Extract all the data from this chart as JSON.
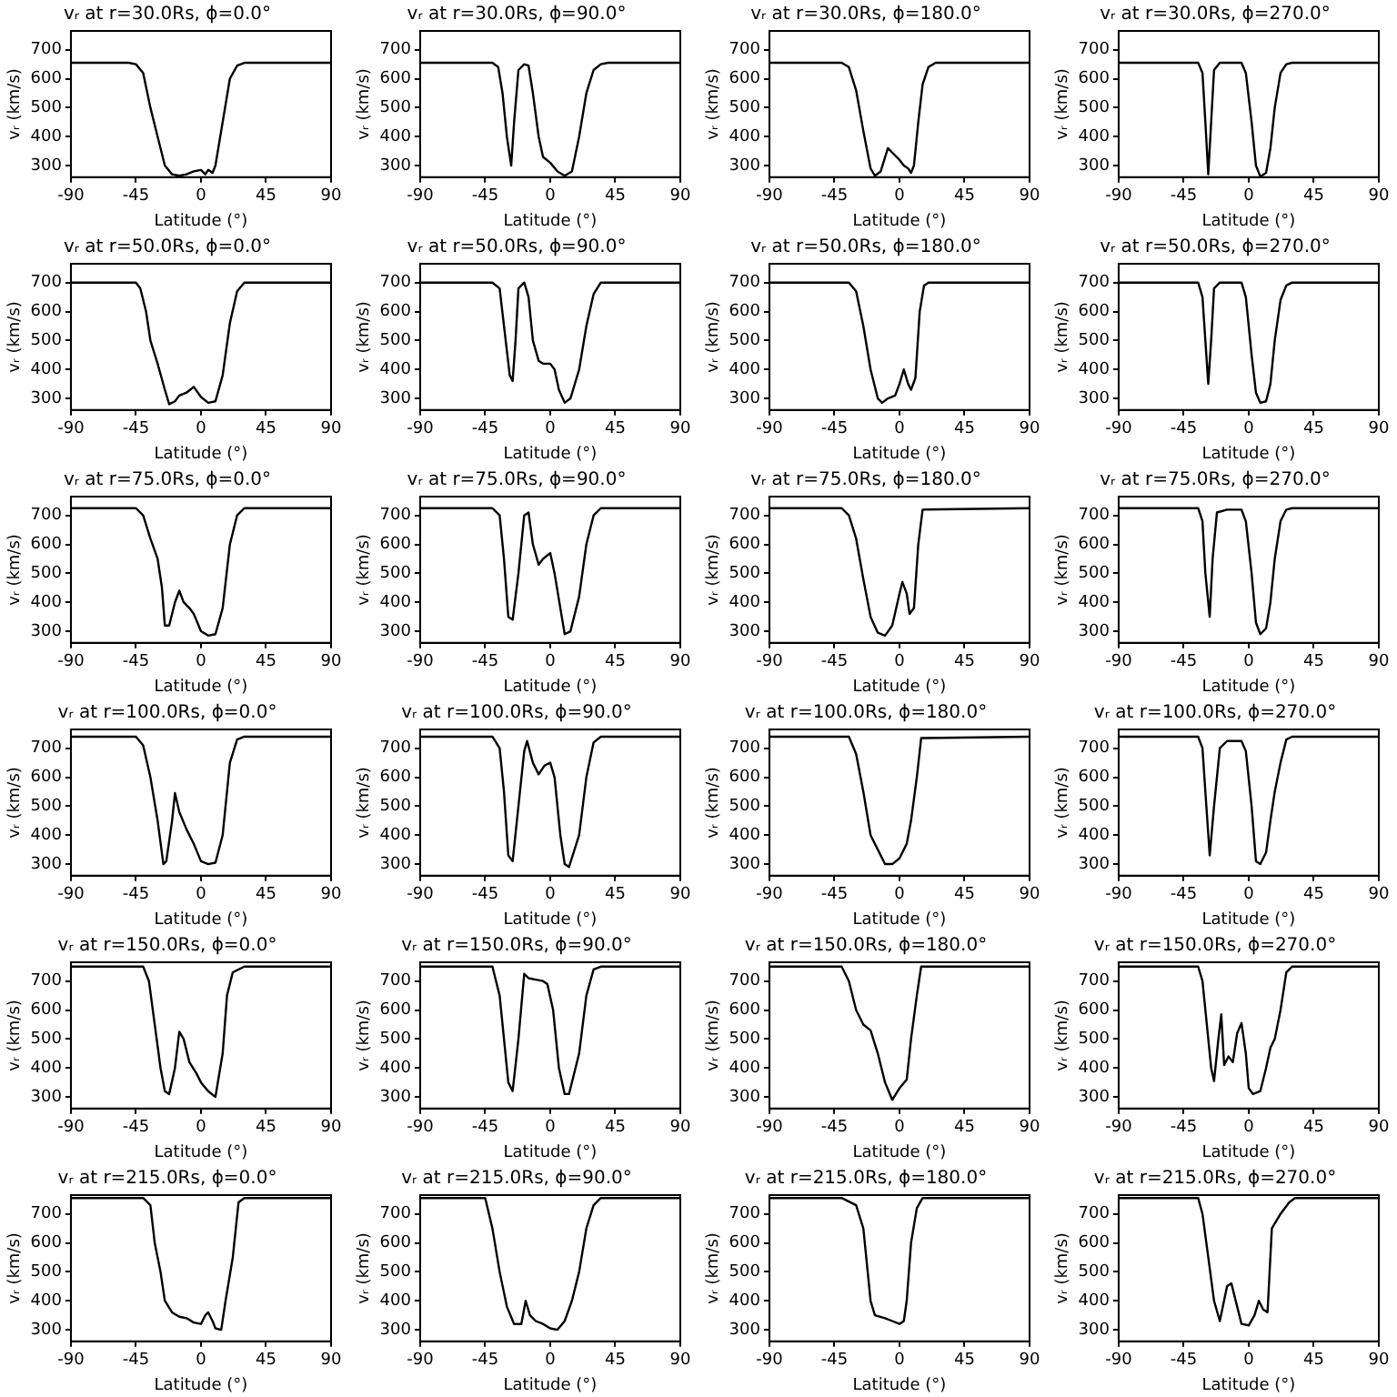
{
  "chart_data": [
    {
      "type": "line",
      "title": "vᵣ at r=30.0Rs, ϕ=0.0°",
      "xlabel": "Latitude (°)",
      "ylabel": "vᵣ (km/s)",
      "xlim": [
        -90,
        90
      ],
      "xticks": [
        -90,
        -45,
        0,
        45,
        90
      ],
      "ylim": [
        260,
        765
      ],
      "yticks": [
        300,
        400,
        500,
        600,
        700
      ],
      "color": "#000000",
      "marker": "none",
      "x": [
        -90,
        -50,
        -45,
        -40,
        -35,
        -30,
        -25,
        -20,
        -15,
        -10,
        -5,
        0,
        3,
        5,
        8,
        10,
        15,
        20,
        25,
        30,
        90
      ],
      "values": [
        655,
        655,
        650,
        620,
        500,
        400,
        300,
        270,
        265,
        270,
        280,
        285,
        270,
        285,
        275,
        300,
        450,
        600,
        645,
        655,
        655
      ]
    },
    {
      "type": "line",
      "title": "vᵣ at r=30.0Rs, ϕ=90.0°",
      "xlabel": "Latitude (°)",
      "ylabel": "vᵣ (km/s)",
      "xlim": [
        -90,
        90
      ],
      "xticks": [
        -90,
        -45,
        0,
        45,
        90
      ],
      "ylim": [
        260,
        765
      ],
      "yticks": [
        300,
        400,
        500,
        600,
        700
      ],
      "color": "#000000",
      "marker": "none",
      "x": [
        -90,
        -40,
        -36,
        -33,
        -30,
        -27,
        -25,
        -22,
        -18,
        -15,
        -12,
        -8,
        -5,
        0,
        5,
        10,
        15,
        20,
        25,
        30,
        35,
        40,
        90
      ],
      "values": [
        655,
        655,
        640,
        550,
        400,
        300,
        450,
        630,
        650,
        645,
        550,
        400,
        330,
        310,
        280,
        265,
        280,
        400,
        550,
        630,
        650,
        655,
        655
      ]
    },
    {
      "type": "line",
      "title": "vᵣ at r=30.0Rs, ϕ=180.0°",
      "xlabel": "Latitude (°)",
      "ylabel": "vᵣ (km/s)",
      "xlim": [
        -90,
        90
      ],
      "xticks": [
        -90,
        -45,
        0,
        45,
        90
      ],
      "ylim": [
        260,
        765
      ],
      "yticks": [
        300,
        400,
        500,
        600,
        700
      ],
      "color": "#000000",
      "marker": "none",
      "x": [
        -90,
        -40,
        -35,
        -30,
        -25,
        -20,
        -17,
        -13,
        -8,
        -5,
        0,
        3,
        6,
        8,
        10,
        13,
        16,
        20,
        25,
        90
      ],
      "values": [
        655,
        655,
        640,
        560,
        420,
        290,
        265,
        280,
        360,
        345,
        320,
        300,
        290,
        275,
        300,
        450,
        580,
        640,
        655,
        655
      ]
    },
    {
      "type": "line",
      "title": "vᵣ at r=30.0Rs, ϕ=270.0°",
      "xlabel": "Latitude (°)",
      "ylabel": "vᵣ (km/s)",
      "xlim": [
        -90,
        90
      ],
      "xticks": [
        -90,
        -45,
        0,
        45,
        90
      ],
      "ylim": [
        260,
        765
      ],
      "yticks": [
        300,
        400,
        500,
        600,
        700
      ],
      "color": "#000000",
      "marker": "none",
      "x": [
        -90,
        -35,
        -32,
        -30,
        -28,
        -26,
        -24,
        -20,
        -5,
        -2,
        2,
        5,
        8,
        12,
        15,
        18,
        22,
        26,
        30,
        90
      ],
      "values": [
        655,
        655,
        620,
        450,
        270,
        450,
        630,
        655,
        655,
        620,
        450,
        300,
        262,
        275,
        360,
        500,
        620,
        650,
        655,
        655
      ]
    },
    {
      "type": "line",
      "title": "vᵣ at r=50.0Rs, ϕ=0.0°",
      "xlabel": "Latitude (°)",
      "ylabel": "vᵣ (km/s)",
      "xlim": [
        -90,
        90
      ],
      "xticks": [
        -90,
        -45,
        0,
        45,
        90
      ],
      "ylim": [
        260,
        765
      ],
      "yticks": [
        300,
        400,
        500,
        600,
        700
      ],
      "color": "#000000",
      "marker": "none",
      "x": [
        -90,
        -45,
        -42,
        -38,
        -35,
        -30,
        -25,
        -22,
        -18,
        -15,
        -10,
        -5,
        0,
        5,
        10,
        15,
        20,
        25,
        30,
        90
      ],
      "values": [
        700,
        700,
        680,
        600,
        500,
        420,
        330,
        280,
        290,
        310,
        320,
        340,
        305,
        285,
        290,
        380,
        560,
        670,
        700,
        700
      ]
    },
    {
      "type": "line",
      "title": "vᵣ at r=50.0Rs, ϕ=90.0°",
      "xlabel": "Latitude (°)",
      "ylabel": "vᵣ (km/s)",
      "xlim": [
        -90,
        90
      ],
      "xticks": [
        -90,
        -45,
        0,
        45,
        90
      ],
      "ylim": [
        260,
        765
      ],
      "yticks": [
        300,
        400,
        500,
        600,
        700
      ],
      "color": "#000000",
      "marker": "none",
      "x": [
        -90,
        -40,
        -35,
        -32,
        -28,
        -26,
        -24,
        -22,
        -18,
        -15,
        -12,
        -8,
        -5,
        0,
        3,
        6,
        10,
        14,
        20,
        25,
        30,
        35,
        90
      ],
      "values": [
        700,
        700,
        680,
        550,
        380,
        360,
        500,
        680,
        700,
        650,
        500,
        430,
        420,
        420,
        400,
        330,
        285,
        300,
        400,
        550,
        660,
        700,
        700
      ]
    },
    {
      "type": "line",
      "title": "vᵣ at r=50.0Rs, ϕ=180.0°",
      "xlabel": "Latitude (°)",
      "ylabel": "vᵣ (km/s)",
      "xlim": [
        -90,
        90
      ],
      "xticks": [
        -90,
        -45,
        0,
        45,
        90
      ],
      "ylim": [
        260,
        765
      ],
      "yticks": [
        300,
        400,
        500,
        600,
        700
      ],
      "color": "#000000",
      "marker": "none",
      "x": [
        -90,
        -35,
        -30,
        -25,
        -20,
        -15,
        -12,
        -8,
        -3,
        0,
        3,
        6,
        8,
        11,
        14,
        17,
        20,
        90
      ],
      "values": [
        700,
        700,
        670,
        550,
        400,
        300,
        285,
        300,
        310,
        350,
        400,
        350,
        330,
        370,
        600,
        690,
        700,
        700
      ]
    },
    {
      "type": "line",
      "title": "vᵣ at r=50.0Rs, ϕ=270.0°",
      "xlabel": "Latitude (°)",
      "ylabel": "vᵣ (km/s)",
      "xlim": [
        -90,
        90
      ],
      "xticks": [
        -90,
        -45,
        0,
        45,
        90
      ],
      "ylim": [
        260,
        765
      ],
      "yticks": [
        300,
        400,
        500,
        600,
        700
      ],
      "color": "#000000",
      "marker": "none",
      "x": [
        -90,
        -35,
        -32,
        -30,
        -28,
        -26,
        -24,
        -20,
        -5,
        -2,
        2,
        5,
        8,
        12,
        15,
        18,
        22,
        26,
        30,
        90
      ],
      "values": [
        700,
        700,
        650,
        500,
        350,
        500,
        680,
        700,
        700,
        650,
        450,
        320,
        285,
        290,
        350,
        500,
        640,
        690,
        700,
        700
      ]
    },
    {
      "type": "line",
      "title": "vᵣ at r=75.0Rs, ϕ=0.0°",
      "xlabel": "Latitude (°)",
      "ylabel": "vᵣ (km/s)",
      "xlim": [
        -90,
        90
      ],
      "xticks": [
        -90,
        -45,
        0,
        45,
        90
      ],
      "ylim": [
        260,
        765
      ],
      "yticks": [
        300,
        400,
        500,
        600,
        700
      ],
      "color": "#000000",
      "marker": "none",
      "x": [
        -90,
        -45,
        -40,
        -35,
        -30,
        -27,
        -25,
        -22,
        -18,
        -15,
        -12,
        -8,
        -5,
        0,
        5,
        10,
        15,
        20,
        25,
        30,
        90
      ],
      "values": [
        725,
        725,
        700,
        620,
        550,
        450,
        320,
        320,
        400,
        440,
        400,
        380,
        360,
        300,
        285,
        290,
        380,
        600,
        700,
        725,
        725
      ]
    },
    {
      "type": "line",
      "title": "vᵣ at r=75.0Rs, ϕ=90.0°",
      "xlabel": "Latitude (°)",
      "ylabel": "vᵣ (km/s)",
      "xlim": [
        -90,
        90
      ],
      "xticks": [
        -90,
        -45,
        0,
        45,
        90
      ],
      "ylim": [
        260,
        765
      ],
      "yticks": [
        300,
        400,
        500,
        600,
        700
      ],
      "color": "#000000",
      "marker": "none",
      "x": [
        -90,
        -40,
        -35,
        -32,
        -29,
        -26,
        -22,
        -18,
        -15,
        -12,
        -8,
        -5,
        0,
        3,
        7,
        10,
        14,
        20,
        25,
        30,
        35,
        90
      ],
      "values": [
        725,
        725,
        700,
        550,
        350,
        340,
        500,
        700,
        710,
        600,
        530,
        550,
        570,
        500,
        380,
        290,
        300,
        420,
        600,
        700,
        725,
        725
      ]
    },
    {
      "type": "line",
      "title": "vᵣ at r=75.0Rs, ϕ=180.0°",
      "xlabel": "Latitude (°)",
      "ylabel": "vᵣ (km/s)",
      "xlim": [
        -90,
        90
      ],
      "xticks": [
        -90,
        -45,
        0,
        45,
        90
      ],
      "ylim": [
        260,
        765
      ],
      "yticks": [
        300,
        400,
        500,
        600,
        700
      ],
      "color": "#000000",
      "marker": "none",
      "x": [
        -90,
        -40,
        -35,
        -30,
        -25,
        -20,
        -15,
        -10,
        -5,
        0,
        2,
        5,
        7,
        10,
        13,
        16,
        90
      ],
      "values": [
        725,
        725,
        700,
        620,
        480,
        350,
        295,
        285,
        320,
        430,
        470,
        430,
        360,
        380,
        600,
        720,
        725
      ]
    },
    {
      "type": "line",
      "title": "vᵣ at r=75.0Rs, ϕ=270.0°",
      "xlabel": "Latitude (°)",
      "ylabel": "vᵣ (km/s)",
      "xlim": [
        -90,
        90
      ],
      "xticks": [
        -90,
        -45,
        0,
        45,
        90
      ],
      "ylim": [
        260,
        765
      ],
      "yticks": [
        300,
        400,
        500,
        600,
        700
      ],
      "color": "#000000",
      "marker": "none",
      "x": [
        -90,
        -35,
        -32,
        -30,
        -27,
        -25,
        -22,
        -15,
        -5,
        -2,
        2,
        5,
        8,
        12,
        15,
        18,
        22,
        26,
        30,
        90
      ],
      "values": [
        725,
        725,
        680,
        500,
        350,
        550,
        710,
        720,
        720,
        680,
        500,
        330,
        290,
        310,
        400,
        550,
        680,
        720,
        725,
        725
      ]
    },
    {
      "type": "line",
      "title": "vᵣ at r=100.0Rs, ϕ=0.0°",
      "xlabel": "Latitude (°)",
      "ylabel": "vᵣ (km/s)",
      "xlim": [
        -90,
        90
      ],
      "xticks": [
        -90,
        -45,
        0,
        45,
        90
      ],
      "ylim": [
        260,
        765
      ],
      "yticks": [
        300,
        400,
        500,
        600,
        700
      ],
      "color": "#000000",
      "marker": "none",
      "x": [
        -90,
        -45,
        -40,
        -35,
        -30,
        -26,
        -24,
        -20,
        -18,
        -15,
        -10,
        -5,
        0,
        5,
        10,
        15,
        20,
        25,
        30,
        90
      ],
      "values": [
        740,
        740,
        710,
        600,
        450,
        300,
        310,
        450,
        545,
        480,
        420,
        370,
        310,
        300,
        305,
        400,
        650,
        730,
        740,
        740
      ]
    },
    {
      "type": "line",
      "title": "vᵣ at r=100.0Rs, ϕ=90.0°",
      "xlabel": "Latitude (°)",
      "ylabel": "vᵣ (km/s)",
      "xlim": [
        -90,
        90
      ],
      "xticks": [
        -90,
        -45,
        0,
        45,
        90
      ],
      "ylim": [
        260,
        765
      ],
      "yticks": [
        300,
        400,
        500,
        600,
        700
      ],
      "color": "#000000",
      "marker": "none",
      "x": [
        -90,
        -40,
        -35,
        -32,
        -29,
        -26,
        -22,
        -18,
        -16,
        -12,
        -8,
        -4,
        0,
        3,
        7,
        10,
        13,
        20,
        25,
        30,
        35,
        90
      ],
      "values": [
        740,
        740,
        700,
        550,
        330,
        310,
        500,
        690,
        725,
        650,
        610,
        640,
        650,
        600,
        400,
        300,
        290,
        400,
        600,
        720,
        740,
        740
      ]
    },
    {
      "type": "line",
      "title": "vᵣ at r=100.0Rs, ϕ=180.0°",
      "xlabel": "Latitude (°)",
      "ylabel": "vᵣ (km/s)",
      "xlim": [
        -90,
        90
      ],
      "xticks": [
        -90,
        -45,
        0,
        45,
        90
      ],
      "ylim": [
        260,
        765
      ],
      "yticks": [
        300,
        400,
        500,
        600,
        700
      ],
      "color": "#000000",
      "marker": "none",
      "x": [
        -90,
        -35,
        -30,
        -25,
        -20,
        -15,
        -10,
        -5,
        0,
        5,
        8,
        12,
        15,
        90
      ],
      "values": [
        740,
        740,
        680,
        550,
        400,
        350,
        300,
        300,
        320,
        370,
        450,
        600,
        735,
        740
      ]
    },
    {
      "type": "line",
      "title": "vᵣ at r=100.0Rs, ϕ=270.0°",
      "xlabel": "Latitude (°)",
      "ylabel": "vᵣ (km/s)",
      "xlim": [
        -90,
        90
      ],
      "xticks": [
        -90,
        -45,
        0,
        45,
        90
      ],
      "ylim": [
        260,
        765
      ],
      "yticks": [
        300,
        400,
        500,
        600,
        700
      ],
      "color": "#000000",
      "marker": "none",
      "x": [
        -90,
        -35,
        -32,
        -30,
        -27,
        -24,
        -20,
        -15,
        -5,
        -2,
        2,
        5,
        8,
        12,
        15,
        18,
        22,
        26,
        30,
        90
      ],
      "values": [
        740,
        740,
        700,
        550,
        330,
        500,
        700,
        725,
        725,
        690,
        500,
        310,
        300,
        340,
        450,
        550,
        650,
        730,
        740,
        740
      ]
    },
    {
      "type": "line",
      "title": "vᵣ at r=150.0Rs, ϕ=0.0°",
      "xlabel": "Latitude (°)",
      "ylabel": "vᵣ (km/s)",
      "xlim": [
        -90,
        90
      ],
      "xticks": [
        -90,
        -45,
        0,
        45,
        90
      ],
      "ylim": [
        260,
        765
      ],
      "yticks": [
        300,
        400,
        500,
        600,
        700
      ],
      "color": "#000000",
      "marker": "none",
      "x": [
        -90,
        -40,
        -36,
        -32,
        -28,
        -25,
        -22,
        -18,
        -15,
        -12,
        -8,
        -3,
        0,
        5,
        10,
        15,
        18,
        22,
        30,
        90
      ],
      "values": [
        750,
        750,
        700,
        550,
        400,
        320,
        310,
        400,
        525,
        500,
        420,
        380,
        350,
        320,
        300,
        450,
        650,
        730,
        750,
        750
      ]
    },
    {
      "type": "line",
      "title": "vᵣ at r=150.0Rs, ϕ=90.0°",
      "xlabel": "Latitude (°)",
      "ylabel": "vᵣ (km/s)",
      "xlim": [
        -90,
        90
      ],
      "xticks": [
        -90,
        -45,
        0,
        45,
        90
      ],
      "ylim": [
        260,
        765
      ],
      "yticks": [
        300,
        400,
        500,
        600,
        700
      ],
      "color": "#000000",
      "marker": "none",
      "x": [
        -90,
        -40,
        -35,
        -32,
        -29,
        -26,
        -22,
        -18,
        -15,
        -10,
        -5,
        -2,
        2,
        6,
        10,
        13,
        20,
        25,
        30,
        35,
        90
      ],
      "values": [
        750,
        750,
        650,
        500,
        350,
        320,
        500,
        725,
        710,
        705,
        700,
        690,
        600,
        400,
        310,
        310,
        450,
        650,
        740,
        750,
        750
      ]
    },
    {
      "type": "line",
      "title": "vᵣ at r=150.0Rs, ϕ=180.0°",
      "xlabel": "Latitude (°)",
      "ylabel": "vᵣ (km/s)",
      "xlim": [
        -90,
        90
      ],
      "xticks": [
        -90,
        -45,
        0,
        45,
        90
      ],
      "ylim": [
        260,
        765
      ],
      "yticks": [
        300,
        400,
        500,
        600,
        700
      ],
      "color": "#000000",
      "marker": "none",
      "x": [
        -90,
        -40,
        -35,
        -30,
        -25,
        -20,
        -15,
        -10,
        -5,
        0,
        5,
        8,
        12,
        15,
        90
      ],
      "values": [
        750,
        750,
        700,
        600,
        550,
        530,
        450,
        350,
        290,
        330,
        360,
        500,
        650,
        750,
        750
      ]
    },
    {
      "type": "line",
      "title": "vᵣ at r=150.0Rs, ϕ=270.0°",
      "xlabel": "Latitude (°)",
      "ylabel": "vᵣ (km/s)",
      "xlim": [
        -90,
        90
      ],
      "xticks": [
        -90,
        -45,
        0,
        45,
        90
      ],
      "ylim": [
        260,
        765
      ],
      "yticks": [
        300,
        400,
        500,
        600,
        700
      ],
      "color": "#000000",
      "marker": "none",
      "x": [
        -90,
        -35,
        -32,
        -29,
        -26,
        -24,
        -21,
        -19,
        -17,
        -14,
        -11,
        -8,
        -5,
        -2,
        0,
        3,
        8,
        12,
        15,
        18,
        22,
        26,
        30,
        90
      ],
      "values": [
        750,
        750,
        700,
        550,
        400,
        355,
        500,
        585,
        410,
        440,
        420,
        520,
        555,
        450,
        330,
        310,
        320,
        400,
        470,
        500,
        600,
        730,
        750,
        750
      ]
    },
    {
      "type": "line",
      "title": "vᵣ at r=215.0Rs, ϕ=0.0°",
      "xlabel": "Latitude (°)",
      "ylabel": "vᵣ (km/s)",
      "xlim": [
        -90,
        90
      ],
      "xticks": [
        -90,
        -45,
        0,
        45,
        90
      ],
      "ylim": [
        260,
        765
      ],
      "yticks": [
        300,
        400,
        500,
        600,
        700
      ],
      "color": "#000000",
      "marker": "none",
      "x": [
        -90,
        -40,
        -35,
        -32,
        -28,
        -25,
        -20,
        -15,
        -10,
        -5,
        0,
        3,
        5,
        8,
        10,
        14,
        17,
        22,
        26,
        30,
        90
      ],
      "values": [
        755,
        755,
        730,
        600,
        500,
        400,
        360,
        345,
        340,
        325,
        320,
        350,
        360,
        330,
        305,
        300,
        400,
        550,
        740,
        755,
        755
      ]
    },
    {
      "type": "line",
      "title": "vᵣ at r=215.0Rs, ϕ=90.0°",
      "xlabel": "Latitude (°)",
      "ylabel": "vᵣ (km/s)",
      "xlim": [
        -90,
        90
      ],
      "xticks": [
        -90,
        -45,
        0,
        45,
        90
      ],
      "ylim": [
        260,
        765
      ],
      "yticks": [
        300,
        400,
        500,
        600,
        700
      ],
      "color": "#000000",
      "marker": "none",
      "x": [
        -90,
        -45,
        -40,
        -35,
        -30,
        -25,
        -20,
        -17,
        -14,
        -10,
        -5,
        0,
        5,
        10,
        15,
        20,
        25,
        30,
        35,
        90
      ],
      "values": [
        755,
        755,
        650,
        500,
        380,
        320,
        320,
        400,
        350,
        330,
        320,
        305,
        300,
        330,
        400,
        500,
        650,
        730,
        755,
        755
      ]
    },
    {
      "type": "line",
      "title": "vᵣ at r=215.0Rs, ϕ=180.0°",
      "xlabel": "Latitude (°)",
      "ylabel": "vᵣ (km/s)",
      "xlim": [
        -90,
        90
      ],
      "xticks": [
        -90,
        -45,
        0,
        45,
        90
      ],
      "ylim": [
        260,
        765
      ],
      "yticks": [
        300,
        400,
        500,
        600,
        700
      ],
      "color": "#000000",
      "marker": "none",
      "x": [
        -90,
        -40,
        -30,
        -25,
        -22,
        -20,
        -17,
        -10,
        -5,
        0,
        3,
        5,
        8,
        12,
        16,
        90
      ],
      "values": [
        755,
        755,
        730,
        650,
        500,
        400,
        350,
        340,
        330,
        320,
        330,
        400,
        600,
        720,
        755,
        755
      ]
    },
    {
      "type": "line",
      "title": "vᵣ at r=215.0Rs, ϕ=270.0°",
      "xlabel": "Latitude (°)",
      "ylabel": "vᵣ (km/s)",
      "xlim": [
        -90,
        90
      ],
      "xticks": [
        -90,
        -45,
        0,
        45,
        90
      ],
      "ylim": [
        260,
        765
      ],
      "yticks": [
        300,
        400,
        500,
        600,
        700
      ],
      "color": "#000000",
      "marker": "none",
      "x": [
        -90,
        -35,
        -32,
        -28,
        -24,
        -20,
        -15,
        -12,
        -8,
        -5,
        0,
        4,
        7,
        10,
        13,
        16,
        22,
        28,
        32,
        90
      ],
      "values": [
        755,
        755,
        700,
        550,
        400,
        330,
        450,
        460,
        380,
        320,
        315,
        350,
        400,
        370,
        360,
        650,
        700,
        740,
        755,
        755
      ]
    }
  ]
}
